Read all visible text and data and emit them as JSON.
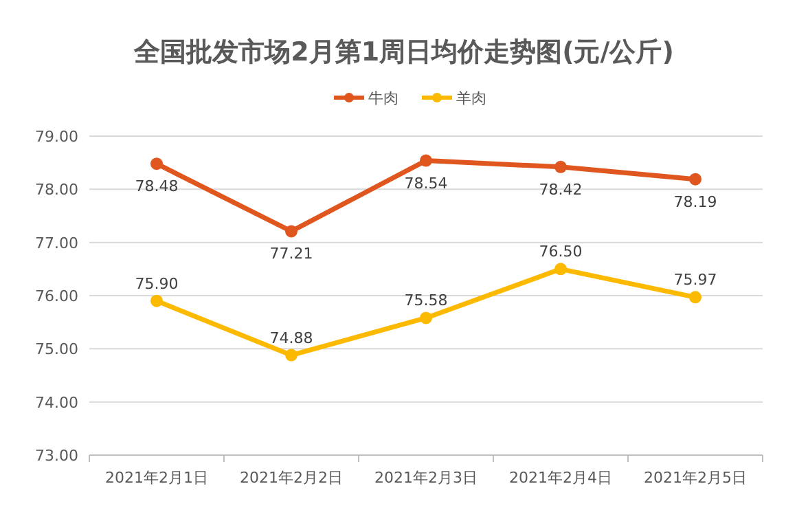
{
  "chart_data": {
    "type": "line",
    "title": "全国批发市场2月第1周日均价走势图(元/公斤)",
    "categories": [
      "2021年2月1日",
      "2021年2月2日",
      "2021年2月3日",
      "2021年2月4日",
      "2021年2月5日"
    ],
    "series": [
      {
        "name": "牛肉",
        "color": "#e0561f",
        "values": [
          78.48,
          77.21,
          78.54,
          78.42,
          78.19
        ],
        "value_labels": [
          "78.48",
          "77.21",
          "78.54",
          "78.42",
          "78.19"
        ]
      },
      {
        "name": "羊肉",
        "color": "#fbb900",
        "values": [
          75.9,
          74.88,
          75.58,
          76.5,
          75.97
        ],
        "value_labels": [
          "75.90",
          "74.88",
          "75.58",
          "76.50",
          "75.97"
        ]
      }
    ],
    "ylim": [
      73,
      79
    ],
    "yticks": [
      {
        "value": 73,
        "label": "73.00"
      },
      {
        "value": 74,
        "label": "74.00"
      },
      {
        "value": 75,
        "label": "75.00"
      },
      {
        "value": 76,
        "label": "76.00"
      },
      {
        "value": 77,
        "label": "77.00"
      },
      {
        "value": 78,
        "label": "78.00"
      },
      {
        "value": 79,
        "label": "79.00"
      }
    ],
    "grid": "y",
    "legend": "top",
    "marker": "circle",
    "line_style": "solid"
  }
}
